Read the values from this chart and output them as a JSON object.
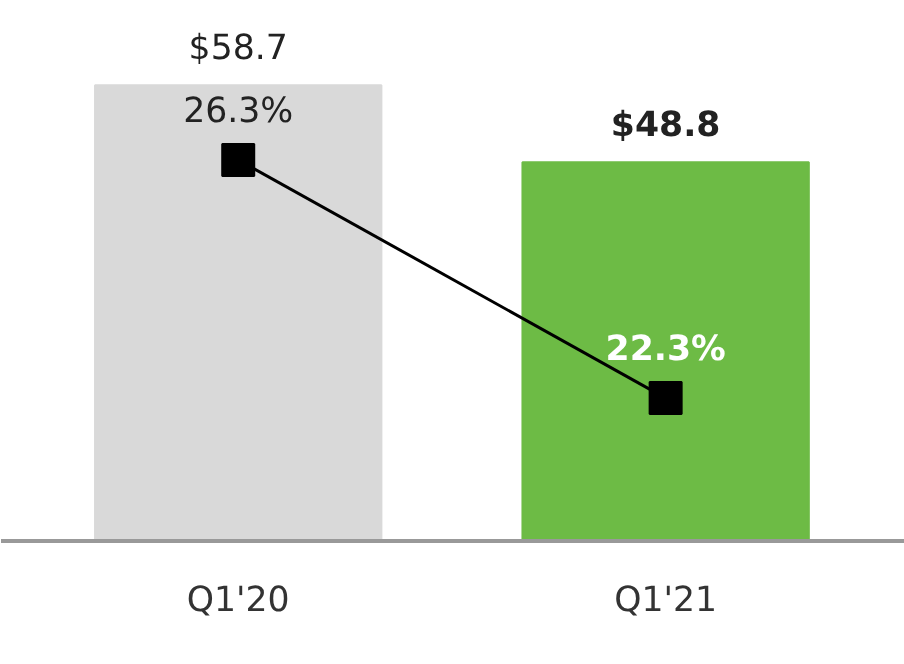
{
  "chart_data": {
    "type": "bar",
    "categories": [
      "Q1'20",
      "Q1'21"
    ],
    "tick_labels": "x",
    "grid": false,
    "series": [
      {
        "colors": [
          "#d9d9d9",
          "#6dbb45"
        ],
        "values": [
          58.7,
          48.8
        ],
        "value_labels": [
          "$58.7",
          "$48.8"
        ]
      },
      {
        "type": "line",
        "axis": "y2",
        "color": "#000000",
        "marker": "square",
        "values": [
          26.3,
          22.3
        ],
        "value_labels": [
          "26.3%",
          "22.3%"
        ]
      }
    ]
  }
}
